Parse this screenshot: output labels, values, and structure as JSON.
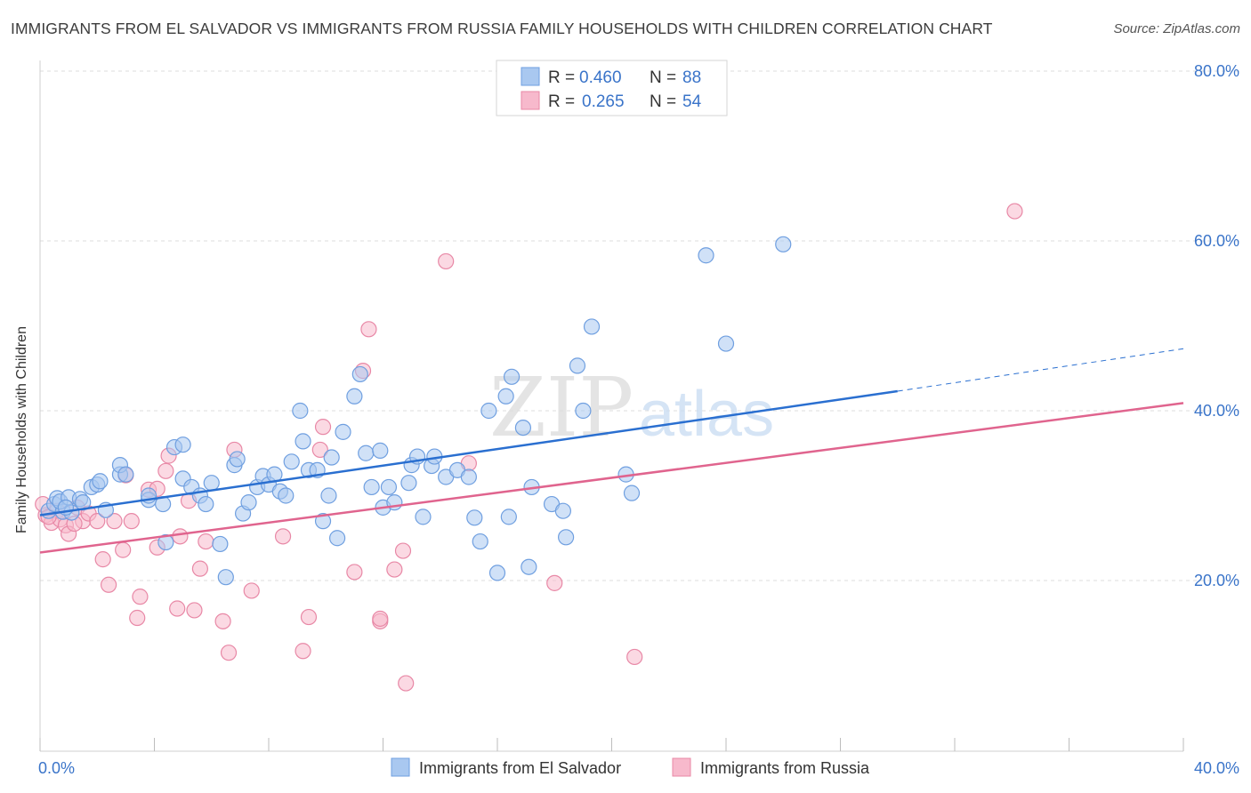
{
  "header": {
    "title": "IMMIGRANTS FROM EL SALVADOR VS IMMIGRANTS FROM RUSSIA FAMILY HOUSEHOLDS WITH CHILDREN CORRELATION CHART",
    "source": "Source: ZipAtlas.com"
  },
  "watermark": {
    "zip": "ZIP",
    "atlas": "atlas"
  },
  "legend_top": {
    "rows": [
      {
        "r_label": "R = ",
        "r_value": "0.460",
        "n_label": "N = ",
        "n_value": "88"
      },
      {
        "r_label": "R = ",
        "r_value": "0.265",
        "n_label": "N = ",
        "n_value": "54"
      }
    ]
  },
  "colors": {
    "blue_fill": "#a9c8f0",
    "blue_stroke": "#6f9fe0",
    "blue_line": "#2a6fd0",
    "pink_fill": "#f7b9cc",
    "pink_stroke": "#e888a6",
    "pink_line": "#e0648e",
    "value_text": "#3a74c9",
    "grid": "#dddddd"
  },
  "chart_data": {
    "type": "scatter",
    "title": "IMMIGRANTS FROM EL SALVADOR VS IMMIGRANTS FROM RUSSIA FAMILY HOUSEHOLDS WITH CHILDREN CORRELATION CHART",
    "xlabel": "",
    "ylabel": "Family Households with Children",
    "xlim": [
      0,
      40
    ],
    "ylim": [
      0,
      83
    ],
    "x_tick_labels": [
      "0.0%",
      "40.0%"
    ],
    "y_ticks": [
      20,
      40,
      60,
      80
    ],
    "y_tick_labels": [
      "20.0%",
      "40.0%",
      "60.0%",
      "80.0%"
    ],
    "grid": true,
    "legend_position": "bottom-center",
    "series": [
      {
        "name": "Immigrants from El Salvador",
        "color": "#a9c8f0",
        "r": 0.46,
        "n": 88,
        "trend": {
          "x": [
            0,
            30
          ],
          "y": [
            27.7,
            42.3
          ],
          "dashed_to": [
            40,
            47.3
          ]
        },
        "points": [
          [
            0.3,
            28.2
          ],
          [
            0.5,
            29.0
          ],
          [
            0.6,
            29.7
          ],
          [
            0.8,
            28.1
          ],
          [
            0.7,
            29.3
          ],
          [
            1.0,
            29.8
          ],
          [
            1.1,
            28.0
          ],
          [
            1.4,
            29.6
          ],
          [
            1.5,
            29.2
          ],
          [
            1.8,
            31.0
          ],
          [
            2.0,
            31.3
          ],
          [
            2.1,
            31.7
          ],
          [
            2.3,
            28.3
          ],
          [
            2.8,
            32.5
          ],
          [
            2.8,
            33.6
          ],
          [
            3.0,
            32.5
          ],
          [
            3.8,
            29.5
          ],
          [
            3.8,
            30.0
          ],
          [
            4.3,
            29.0
          ],
          [
            4.4,
            24.5
          ],
          [
            4.7,
            35.7
          ],
          [
            5.0,
            36.0
          ],
          [
            5.0,
            32.0
          ],
          [
            5.3,
            31.0
          ],
          [
            5.6,
            30.0
          ],
          [
            5.8,
            29.0
          ],
          [
            6.0,
            31.5
          ],
          [
            6.3,
            24.3
          ],
          [
            6.5,
            20.4
          ],
          [
            6.8,
            33.6
          ],
          [
            6.9,
            34.3
          ],
          [
            7.1,
            27.9
          ],
          [
            7.3,
            29.2
          ],
          [
            7.6,
            31.0
          ],
          [
            7.8,
            32.3
          ],
          [
            8.0,
            31.3
          ],
          [
            8.2,
            32.5
          ],
          [
            8.4,
            30.5
          ],
          [
            8.6,
            30.0
          ],
          [
            8.8,
            34.0
          ],
          [
            9.1,
            40.0
          ],
          [
            9.2,
            36.4
          ],
          [
            9.4,
            33.0
          ],
          [
            9.7,
            33.0
          ],
          [
            9.9,
            27.0
          ],
          [
            10.1,
            30.0
          ],
          [
            10.2,
            34.5
          ],
          [
            10.4,
            25.0
          ],
          [
            10.6,
            37.5
          ],
          [
            11.0,
            41.7
          ],
          [
            11.2,
            44.3
          ],
          [
            11.4,
            35.0
          ],
          [
            11.6,
            31.0
          ],
          [
            11.9,
            35.3
          ],
          [
            12.0,
            28.6
          ],
          [
            12.2,
            31.0
          ],
          [
            12.4,
            29.2
          ],
          [
            12.9,
            31.5
          ],
          [
            13.0,
            33.6
          ],
          [
            13.2,
            34.6
          ],
          [
            13.4,
            27.5
          ],
          [
            13.7,
            33.5
          ],
          [
            13.8,
            34.6
          ],
          [
            14.2,
            32.2
          ],
          [
            14.6,
            33.0
          ],
          [
            15.0,
            32.2
          ],
          [
            15.2,
            27.4
          ],
          [
            15.4,
            24.6
          ],
          [
            15.7,
            40.0
          ],
          [
            16.0,
            20.9
          ],
          [
            16.3,
            41.7
          ],
          [
            16.4,
            27.5
          ],
          [
            16.5,
            44.0
          ],
          [
            16.9,
            38.0
          ],
          [
            17.1,
            21.6
          ],
          [
            17.2,
            31.0
          ],
          [
            17.9,
            29.0
          ],
          [
            18.3,
            28.2
          ],
          [
            18.4,
            25.1
          ],
          [
            18.8,
            45.3
          ],
          [
            19.0,
            40.0
          ],
          [
            19.3,
            49.9
          ],
          [
            20.5,
            32.5
          ],
          [
            20.7,
            30.3
          ],
          [
            23.3,
            58.3
          ],
          [
            24.0,
            47.9
          ],
          [
            26.0,
            59.6
          ],
          [
            0.9,
            28.6
          ]
        ]
      },
      {
        "name": "Immigrants from Russia",
        "color": "#f7b9cc",
        "r": 0.265,
        "n": 54,
        "trend": {
          "x": [
            0,
            40
          ],
          "y": [
            23.3,
            40.9
          ]
        },
        "points": [
          [
            0.2,
            27.7
          ],
          [
            0.4,
            26.8
          ],
          [
            0.6,
            28.2
          ],
          [
            0.7,
            27.2
          ],
          [
            0.9,
            26.5
          ],
          [
            1.0,
            25.5
          ],
          [
            1.3,
            28.6
          ],
          [
            1.5,
            27.0
          ],
          [
            1.7,
            27.9
          ],
          [
            2.0,
            27.0
          ],
          [
            2.2,
            22.5
          ],
          [
            2.4,
            19.5
          ],
          [
            2.6,
            27.0
          ],
          [
            2.9,
            23.6
          ],
          [
            3.0,
            32.4
          ],
          [
            3.2,
            27.0
          ],
          [
            3.5,
            18.1
          ],
          [
            3.4,
            15.6
          ],
          [
            3.8,
            30.7
          ],
          [
            4.1,
            30.8
          ],
          [
            4.1,
            23.9
          ],
          [
            4.4,
            32.9
          ],
          [
            4.5,
            34.7
          ],
          [
            4.8,
            16.7
          ],
          [
            4.9,
            25.2
          ],
          [
            5.2,
            29.4
          ],
          [
            5.4,
            16.5
          ],
          [
            5.6,
            21.4
          ],
          [
            5.8,
            24.6
          ],
          [
            6.4,
            15.2
          ],
          [
            6.6,
            11.5
          ],
          [
            6.8,
            35.4
          ],
          [
            7.4,
            18.8
          ],
          [
            8.5,
            25.2
          ],
          [
            9.2,
            11.7
          ],
          [
            9.4,
            15.7
          ],
          [
            9.8,
            35.4
          ],
          [
            9.9,
            38.1
          ],
          [
            11.0,
            21.0
          ],
          [
            11.3,
            44.7
          ],
          [
            11.5,
            49.6
          ],
          [
            11.9,
            15.2
          ],
          [
            11.9,
            15.5
          ],
          [
            12.4,
            21.3
          ],
          [
            12.7,
            23.5
          ],
          [
            12.8,
            7.9
          ],
          [
            14.2,
            57.6
          ],
          [
            15.0,
            33.8
          ],
          [
            18.0,
            19.7
          ],
          [
            20.8,
            11.0
          ],
          [
            34.1,
            63.5
          ],
          [
            0.1,
            29.0
          ],
          [
            0.3,
            27.5
          ],
          [
            1.2,
            26.7
          ]
        ]
      }
    ]
  },
  "legend_bottom": {
    "items": [
      "Immigrants from El Salvador",
      "Immigrants from Russia"
    ]
  }
}
